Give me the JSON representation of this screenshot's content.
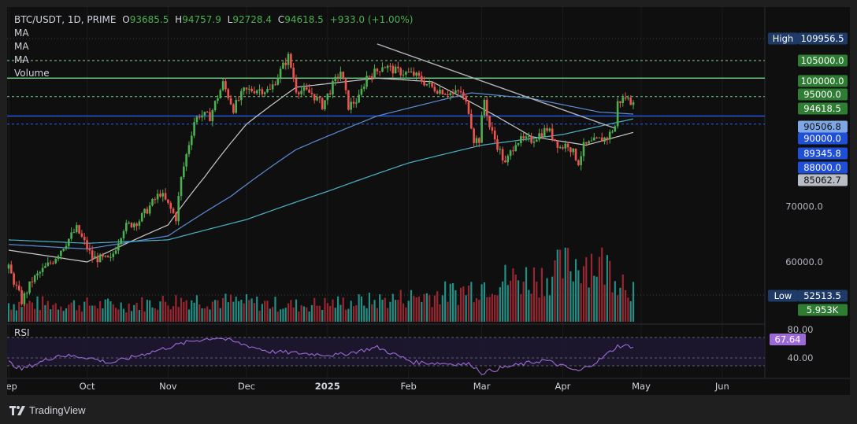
{
  "header": {
    "symbol": "BTC/USDT, 1D, PRIME",
    "o_label": "O",
    "o_value": "93685.5",
    "h_label": "H",
    "h_value": "94757.9",
    "l_label": "L",
    "l_value": "92728.4",
    "c_label": "C",
    "c_value": "94618.5",
    "change": "+933.0 (+1.00%)",
    "indicators": [
      "MA",
      "MA",
      "MA",
      "Volume"
    ]
  },
  "branding": {
    "name": "TradingView",
    "icon": "tradingview-logo-icon"
  },
  "colors": {
    "up": "#26a69a",
    "upCandle": "#4caf50",
    "down": "#ef5350",
    "downVol": "#b02a37",
    "ma_short": "#c8c8c8",
    "ma_mid": "#5b8ed6",
    "ma_long": "#4cb3c6",
    "blue_line": "#2962ff",
    "green_line": "#7cda8c",
    "rsi": "#9c6ad6"
  },
  "chart_data": {
    "type": "candlestick",
    "title": "BTC/USDT, 1D, PRIME",
    "x_range": [
      "2024-09-01",
      "2025-06-30"
    ],
    "price_axis": {
      "scale": "log",
      "ticks": [
        "70000.0",
        "60000.0"
      ],
      "price_tags": [
        {
          "label": "High",
          "value": "109956.5",
          "style": "dark"
        },
        {
          "value": "105000.0",
          "style": "green"
        },
        {
          "value": "100000.0",
          "style": "green"
        },
        {
          "value": "95000.0",
          "style": "green"
        },
        {
          "value": "94618.5",
          "style": "green"
        },
        {
          "value": "90506.8",
          "style": "lightblue"
        },
        {
          "value": "90000.0",
          "style": "blue"
        },
        {
          "value": "89345.8",
          "style": "blue"
        },
        {
          "value": "88000.0",
          "style": "blue"
        },
        {
          "value": "85062.7",
          "style": "gray"
        },
        {
          "label": "Low",
          "value": "52513.5",
          "style": "dark"
        },
        {
          "value": "5.953K",
          "style": "green"
        }
      ]
    },
    "x_ticks": [
      {
        "label": "Sep",
        "date": "2024-09-01"
      },
      {
        "label": "Oct",
        "date": "2024-10-01"
      },
      {
        "label": "Nov",
        "date": "2024-11-01"
      },
      {
        "label": "Dec",
        "date": "2024-12-01"
      },
      {
        "label": "2025",
        "date": "2025-01-01",
        "bold": true
      },
      {
        "label": "Feb",
        "date": "2025-02-01"
      },
      {
        "label": "Mar",
        "date": "2025-03-01"
      },
      {
        "label": "Apr",
        "date": "2025-04-01"
      },
      {
        "label": "May",
        "date": "2025-05-01"
      },
      {
        "label": "Jun",
        "date": "2025-06-01"
      }
    ],
    "horizontal_levels": [
      {
        "value": 105000,
        "color": "green",
        "style": "dashed"
      },
      {
        "value": 100000,
        "color": "green",
        "style": "solid"
      },
      {
        "value": 95000,
        "color": "green",
        "style": "dashed"
      },
      {
        "value": 90000,
        "color": "blue",
        "style": "solid"
      },
      {
        "value": 88000,
        "color": "blue",
        "style": "dashed"
      }
    ],
    "trendlines": [
      {
        "from": [
          "2025-01-20",
          109956
        ],
        "to": [
          "2025-04-21",
          87000
        ]
      }
    ],
    "close_anchors": [
      [
        "2024-09-01",
        58900
      ],
      [
        "2024-09-06",
        53800
      ],
      [
        "2024-09-10",
        57000
      ],
      [
        "2024-09-18",
        60300
      ],
      [
        "2024-09-27",
        65800
      ],
      [
        "2024-09-30",
        63300
      ],
      [
        "2024-10-03",
        60700
      ],
      [
        "2024-10-10",
        60300
      ],
      [
        "2024-10-15",
        66000
      ],
      [
        "2024-10-21",
        67400
      ],
      [
        "2024-10-29",
        72700
      ],
      [
        "2024-11-04",
        67800
      ],
      [
        "2024-11-06",
        75600
      ],
      [
        "2024-11-11",
        88700
      ],
      [
        "2024-11-13",
        90400
      ],
      [
        "2024-11-17",
        89800
      ],
      [
        "2024-11-22",
        98500
      ],
      [
        "2024-11-26",
        91900
      ],
      [
        "2024-11-30",
        96400
      ],
      [
        "2024-12-05",
        97000
      ],
      [
        "2024-12-10",
        96600
      ],
      [
        "2024-12-17",
        106100
      ],
      [
        "2024-12-20",
        97000
      ],
      [
        "2024-12-26",
        95800
      ],
      [
        "2024-12-30",
        92700
      ],
      [
        "2025-01-06",
        102000
      ],
      [
        "2025-01-09",
        92500
      ],
      [
        "2025-01-13",
        94500
      ],
      [
        "2025-01-16",
        100500
      ],
      [
        "2025-01-20",
        102000
      ],
      [
        "2025-01-22",
        103700
      ],
      [
        "2025-01-27",
        102000
      ],
      [
        "2025-02-03",
        101000
      ],
      [
        "2025-02-10",
        97400
      ],
      [
        "2025-02-18",
        95700
      ],
      [
        "2025-02-21",
        96200
      ],
      [
        "2025-02-24",
        91500
      ],
      [
        "2025-02-26",
        84300
      ],
      [
        "2025-02-28",
        84300
      ],
      [
        "2025-03-02",
        94200
      ],
      [
        "2025-03-04",
        87300
      ],
      [
        "2025-03-10",
        78600
      ],
      [
        "2025-03-14",
        84000
      ],
      [
        "2025-03-20",
        84200
      ],
      [
        "2025-03-26",
        86900
      ],
      [
        "2025-03-31",
        82500
      ],
      [
        "2025-04-03",
        83300
      ],
      [
        "2025-04-07",
        79200
      ],
      [
        "2025-04-09",
        82700
      ],
      [
        "2025-04-13",
        83800
      ],
      [
        "2025-04-18",
        84800
      ],
      [
        "2025-04-21",
        87500
      ],
      [
        "2025-04-22",
        93400
      ],
      [
        "2025-04-25",
        94800
      ],
      [
        "2025-04-27",
        93700
      ],
      [
        "2025-04-28",
        94618.5
      ]
    ],
    "moving_averages": [
      {
        "color": "ma_short",
        "anchors": [
          [
            "2024-09-01",
            62000
          ],
          [
            "2024-10-01",
            60000
          ],
          [
            "2024-11-01",
            66500
          ],
          [
            "2024-11-15",
            76000
          ],
          [
            "2024-12-01",
            88000
          ],
          [
            "2024-12-20",
            97500
          ],
          [
            "2025-01-20",
            100000
          ],
          [
            "2025-02-10",
            99000
          ],
          [
            "2025-03-01",
            92000
          ],
          [
            "2025-03-20",
            85000
          ],
          [
            "2025-04-10",
            83000
          ],
          [
            "2025-04-28",
            86000
          ]
        ]
      },
      {
        "color": "ma_mid",
        "anchors": [
          [
            "2024-09-01",
            63000
          ],
          [
            "2024-10-01",
            62200
          ],
          [
            "2024-11-01",
            64500
          ],
          [
            "2024-11-25",
            72000
          ],
          [
            "2024-12-20",
            82000
          ],
          [
            "2025-01-20",
            90000
          ],
          [
            "2025-02-25",
            96000
          ],
          [
            "2025-03-20",
            94500
          ],
          [
            "2025-04-15",
            91000
          ],
          [
            "2025-04-28",
            90500
          ]
        ]
      },
      {
        "color": "ma_long",
        "anchors": [
          [
            "2024-09-01",
            63800
          ],
          [
            "2024-10-01",
            63200
          ],
          [
            "2024-11-01",
            63800
          ],
          [
            "2024-12-01",
            67500
          ],
          [
            "2025-01-01",
            73000
          ],
          [
            "2025-02-01",
            79000
          ],
          [
            "2025-03-01",
            83000
          ],
          [
            "2025-04-01",
            85500
          ],
          [
            "2025-04-28",
            89300
          ]
        ]
      }
    ],
    "volume": {
      "last": "5.953K",
      "level_anchors": [
        [
          "2024-09-01",
          0.25
        ],
        [
          "2024-10-15",
          0.22
        ],
        [
          "2024-11-10",
          0.3
        ],
        [
          "2024-12-20",
          0.22
        ],
        [
          "2025-01-20",
          0.28
        ],
        [
          "2025-02-20",
          0.4
        ],
        [
          "2025-03-05",
          0.55
        ],
        [
          "2025-03-25",
          0.6
        ],
        [
          "2025-04-10",
          0.85
        ],
        [
          "2025-04-20",
          0.7
        ],
        [
          "2025-04-28",
          0.45
        ]
      ]
    },
    "rsi": {
      "label": "RSI",
      "value": "67.64",
      "ticks": [
        "80.00",
        "40.00"
      ],
      "anchors": [
        [
          "2024-09-01",
          45
        ],
        [
          "2024-09-06",
          35
        ],
        [
          "2024-09-20",
          55
        ],
        [
          "2024-10-01",
          52
        ],
        [
          "2024-10-10",
          44
        ],
        [
          "2024-11-10",
          75
        ],
        [
          "2024-11-20",
          80
        ],
        [
          "2024-12-10",
          60
        ],
        [
          "2024-12-20",
          58
        ],
        [
          "2025-01-05",
          55
        ],
        [
          "2025-01-20",
          66
        ],
        [
          "2025-02-03",
          45
        ],
        [
          "2025-02-25",
          42
        ],
        [
          "2025-03-01",
          30
        ],
        [
          "2025-03-10",
          38
        ],
        [
          "2025-03-25",
          48
        ],
        [
          "2025-04-07",
          32
        ],
        [
          "2025-04-15",
          48
        ],
        [
          "2025-04-22",
          68
        ],
        [
          "2025-04-28",
          67.64
        ]
      ]
    }
  }
}
